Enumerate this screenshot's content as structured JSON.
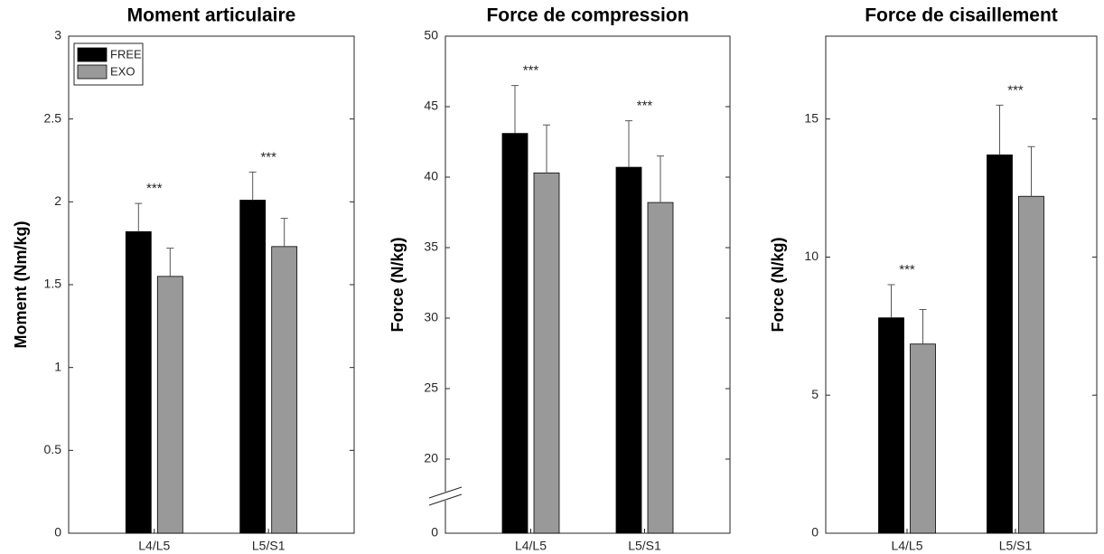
{
  "chart_data": [
    {
      "type": "bar",
      "title": "Moment articulaire",
      "ylabel": "Moment (Nm/kg)",
      "categories": [
        "L4/L5",
        "L5/S1"
      ],
      "series": [
        {
          "name": "FREE",
          "color": "#000000",
          "values": [
            1.82,
            2.01
          ],
          "errors": [
            0.17,
            0.17
          ]
        },
        {
          "name": "EXO",
          "color": "#999999",
          "values": [
            1.55,
            1.73
          ],
          "errors": [
            0.17,
            0.17
          ]
        }
      ],
      "annotations": [
        "***",
        "***"
      ],
      "ylim": [
        0,
        3
      ],
      "yticks": [
        0,
        0.5,
        1,
        1.5,
        2,
        2.5,
        3
      ],
      "legend": "upper left"
    },
    {
      "type": "bar",
      "title": "Force de compression",
      "ylabel": "Force (N/kg)",
      "categories": [
        "L4/L5",
        "L5/S1"
      ],
      "series": [
        {
          "color": "#000000",
          "values": [
            43.1,
            40.7
          ],
          "errors": [
            3.4,
            3.3
          ]
        },
        {
          "color": "#999999",
          "values": [
            40.3,
            38.2
          ],
          "errors": [
            3.4,
            3.3
          ]
        }
      ],
      "annotations": [
        "***",
        "***"
      ],
      "ylim": [
        0,
        50
      ],
      "axis_break": [
        0,
        20
      ],
      "yticks": [
        0,
        20,
        25,
        30,
        35,
        40,
        45,
        50
      ]
    },
    {
      "type": "bar",
      "title": "Force de cisaillement",
      "ylabel": "Force (N/kg)",
      "categories": [
        "L4/L5",
        "L5/S1"
      ],
      "series": [
        {
          "color": "#000000",
          "values": [
            7.8,
            13.7
          ],
          "errors": [
            1.2,
            1.8
          ]
        },
        {
          "color": "#999999",
          "values": [
            6.85,
            12.2
          ],
          "errors": [
            1.25,
            1.8
          ]
        }
      ],
      "annotations": [
        "***",
        "***"
      ],
      "ylim": [
        0,
        18
      ],
      "yticks": [
        0,
        5,
        10,
        15
      ]
    }
  ]
}
